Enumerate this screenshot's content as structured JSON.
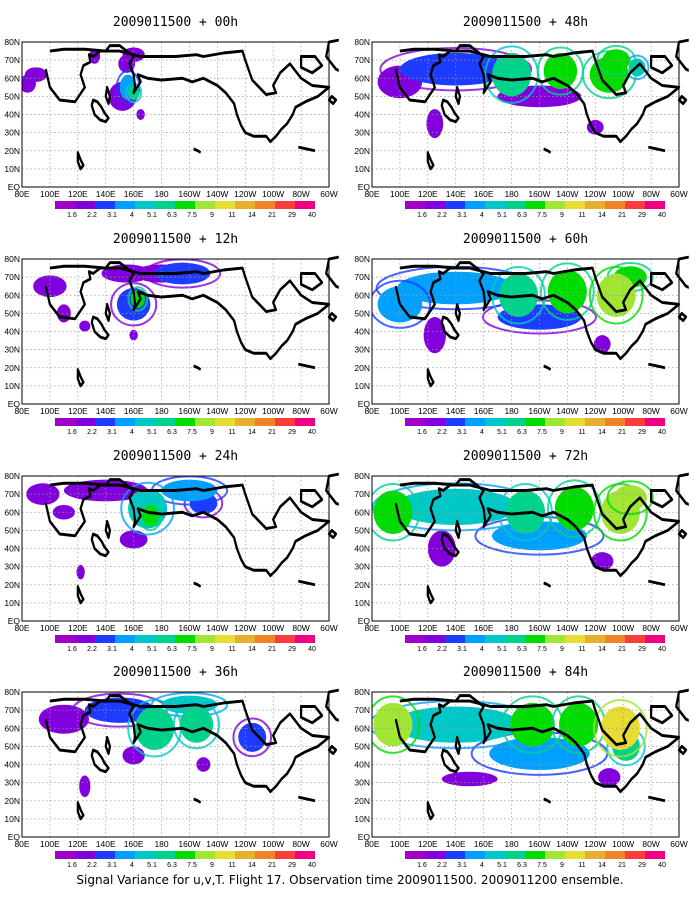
{
  "caption": "Signal Variance for u,v,T. Flight 17. Observation time 2009011500. 2009011200 ensemble.",
  "colors": {
    "levels": [
      "1.6",
      "2.2",
      "3.1",
      "4",
      "5.1",
      "6.3",
      "7.5",
      "9",
      "11",
      "14",
      "21",
      "29",
      "40"
    ],
    "fill": [
      "#a000c8",
      "#8200dc",
      "#1e3cff",
      "#00a0ff",
      "#00c8c8",
      "#00d28c",
      "#00dc00",
      "#a0e632",
      "#e6dc32",
      "#e6af2d",
      "#f08228",
      "#fa3c3c",
      "#f00082"
    ],
    "coast": "#000000",
    "grid": "#9a9a9a"
  },
  "lat_labels": [
    "80N",
    "70N",
    "60N",
    "50N",
    "40N",
    "30N",
    "20N",
    "10N",
    "EQ"
  ],
  "lon_labels": [
    "80E",
    "100E",
    "120E",
    "140E",
    "160E",
    "180",
    "160W",
    "140W",
    "120W",
    "100W",
    "80W",
    "60W"
  ],
  "chart_data": [
    {
      "type": "heatmap",
      "title": "2009011500 + 00h",
      "lead_hours": 0,
      "blobs": [
        [
          152,
          50,
          10,
          8,
          1
        ],
        [
          156,
          55,
          6,
          7,
          3
        ],
        [
          160,
          52,
          4,
          4,
          5
        ],
        [
          160,
          73,
          8,
          4,
          1
        ],
        [
          155,
          68,
          6,
          5,
          1
        ],
        [
          90,
          62,
          8,
          4,
          1
        ],
        [
          84,
          57,
          6,
          5,
          1
        ],
        [
          132,
          72,
          4,
          4,
          1
        ],
        [
          165,
          40,
          3,
          3,
          1
        ]
      ]
    },
    {
      "type": "heatmap",
      "title": "2009011500 + 12h",
      "lead_hours": 12,
      "blobs": [
        [
          160,
          55,
          12,
          9,
          2
        ],
        [
          163,
          58,
          5,
          5,
          6
        ],
        [
          100,
          65,
          12,
          6,
          1
        ],
        [
          155,
          72,
          18,
          5,
          1
        ],
        [
          195,
          72,
          20,
          6,
          2
        ],
        [
          180,
          72,
          20,
          5,
          1
        ],
        [
          110,
          50,
          5,
          5,
          1
        ],
        [
          125,
          43,
          4,
          3,
          1
        ],
        [
          160,
          38,
          3,
          3,
          1
        ]
      ]
    },
    {
      "type": "heatmap",
      "title": "2009011500 + 24h",
      "lead_hours": 24,
      "blobs": [
        [
          170,
          62,
          14,
          11,
          4
        ],
        [
          172,
          58,
          6,
          6,
          6
        ],
        [
          140,
          72,
          30,
          6,
          1
        ],
        [
          200,
          72,
          20,
          6,
          3
        ],
        [
          210,
          65,
          10,
          6,
          2
        ],
        [
          160,
          45,
          10,
          5,
          1
        ],
        [
          95,
          70,
          12,
          6,
          1
        ],
        [
          110,
          60,
          8,
          4,
          1
        ],
        [
          122,
          27,
          3,
          4,
          1
        ]
      ]
    },
    {
      "type": "heatmap",
      "title": "2009011500 + 36h",
      "lead_hours": 36,
      "blobs": [
        [
          175,
          60,
          14,
          12,
          5
        ],
        [
          205,
          62,
          12,
          10,
          5
        ],
        [
          150,
          70,
          25,
          7,
          2
        ],
        [
          110,
          65,
          18,
          8,
          1
        ],
        [
          200,
          73,
          20,
          5,
          4
        ],
        [
          160,
          45,
          8,
          5,
          1
        ],
        [
          245,
          55,
          10,
          8,
          2
        ],
        [
          210,
          40,
          5,
          4,
          1
        ],
        [
          125,
          28,
          4,
          6,
          1
        ]
      ]
    },
    {
      "type": "heatmap",
      "title": "2009011500 + 48h",
      "lead_hours": 48,
      "blobs": [
        [
          180,
          62,
          14,
          12,
          5
        ],
        [
          215,
          64,
          12,
          10,
          6
        ],
        [
          250,
          62,
          14,
          10,
          6
        ],
        [
          140,
          65,
          40,
          9,
          2
        ],
        [
          100,
          58,
          16,
          9,
          1
        ],
        [
          200,
          50,
          30,
          6,
          1
        ],
        [
          255,
          70,
          10,
          6,
          6
        ],
        [
          270,
          66,
          6,
          5,
          4
        ],
        [
          125,
          35,
          6,
          8,
          1
        ],
        [
          240,
          33,
          6,
          4,
          1
        ]
      ]
    },
    {
      "type": "heatmap",
      "title": "2009011500 + 60h",
      "lead_hours": 60,
      "blobs": [
        [
          185,
          60,
          14,
          12,
          5
        ],
        [
          220,
          62,
          14,
          12,
          6
        ],
        [
          255,
          60,
          14,
          12,
          7
        ],
        [
          140,
          64,
          42,
          9,
          3
        ],
        [
          100,
          55,
          16,
          10,
          3
        ],
        [
          200,
          48,
          30,
          7,
          2
        ],
        [
          265,
          70,
          12,
          6,
          6
        ],
        [
          125,
          38,
          8,
          10,
          1
        ],
        [
          245,
          33,
          6,
          5,
          1
        ]
      ]
    },
    {
      "type": "heatmap",
      "title": "2009011500 + 72h",
      "lead_hours": 72,
      "blobs": [
        [
          190,
          60,
          14,
          12,
          5
        ],
        [
          225,
          62,
          14,
          12,
          6
        ],
        [
          258,
          60,
          14,
          12,
          7
        ],
        [
          140,
          63,
          44,
          10,
          4
        ],
        [
          95,
          60,
          14,
          12,
          6
        ],
        [
          200,
          47,
          34,
          8,
          3
        ],
        [
          265,
          68,
          12,
          7,
          7
        ],
        [
          130,
          40,
          10,
          10,
          1
        ],
        [
          245,
          33,
          8,
          5,
          1
        ]
      ]
    },
    {
      "type": "heatmap",
      "title": "2009011500 + 84h",
      "lead_hours": 84,
      "blobs": [
        [
          195,
          62,
          16,
          12,
          6
        ],
        [
          228,
          62,
          14,
          12,
          6
        ],
        [
          258,
          60,
          14,
          12,
          8
        ],
        [
          140,
          62,
          46,
          10,
          4
        ],
        [
          95,
          62,
          14,
          12,
          7
        ],
        [
          200,
          46,
          36,
          9,
          3
        ],
        [
          262,
          50,
          10,
          8,
          5
        ],
        [
          150,
          32,
          20,
          4,
          1
        ],
        [
          250,
          33,
          8,
          5,
          1
        ]
      ]
    }
  ]
}
